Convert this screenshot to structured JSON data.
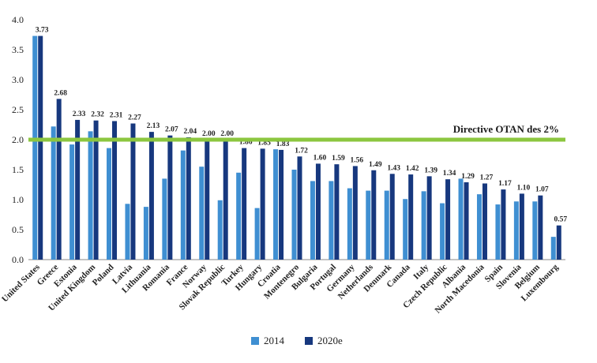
{
  "chart_data": {
    "type": "bar",
    "categories": [
      "United States",
      "Greece",
      "Estonia",
      "United Kingdom",
      "Poland",
      "Latvia",
      "Lithuania",
      "Romania",
      "France",
      "Norway",
      "Slovak Republic",
      "Turkey",
      "Hungary",
      "Croatia",
      "Montenegro",
      "Bulgaria",
      "Portugal",
      "Germany",
      "Netherlands",
      "Denmark",
      "Canada",
      "Italy",
      "Czech Republic",
      "Albania",
      "North Macedonia",
      "Spain",
      "Slovenia",
      "Belgium",
      "Luxembourg"
    ],
    "series": [
      {
        "name": "2014",
        "color": "#3f8fd2",
        "values": [
          3.73,
          2.22,
          1.92,
          2.14,
          1.86,
          0.93,
          0.88,
          1.35,
          1.82,
          1.55,
          0.99,
          1.45,
          0.86,
          1.84,
          1.5,
          1.31,
          1.31,
          1.19,
          1.15,
          1.15,
          1.01,
          1.14,
          0.94,
          1.35,
          1.09,
          0.92,
          0.97,
          0.97,
          0.38
        ]
      },
      {
        "name": "2020e",
        "color": "#17387e",
        "values": [
          3.73,
          2.68,
          2.33,
          2.32,
          2.31,
          2.27,
          2.13,
          2.07,
          2.04,
          2.0,
          2.0,
          1.86,
          1.85,
          1.83,
          1.72,
          1.6,
          1.59,
          1.56,
          1.49,
          1.43,
          1.42,
          1.39,
          1.34,
          1.29,
          1.27,
          1.17,
          1.1,
          1.07,
          0.57
        ],
        "labels": [
          "3.73",
          "2.68",
          "2.33",
          "2.32",
          "2.31",
          "2.27",
          "2.13",
          "2.07",
          "2.04",
          "2.00",
          "2.00",
          "1.86",
          "1.85",
          "1.83",
          "1.72",
          "1.60",
          "1.59",
          "1.56",
          "1.49",
          "1.43",
          "1.42",
          "1.39",
          "1.34",
          "1.29",
          "1.27",
          "1.17",
          "1.10",
          "1.07",
          "0.57"
        ]
      }
    ],
    "ylim": [
      0,
      4.0
    ],
    "yticks": [
      "0.0",
      "0.5",
      "1.0",
      "1.5",
      "2.0",
      "2.5",
      "3.0",
      "3.5",
      "4.0"
    ],
    "reference_line": {
      "value": 2.0,
      "label": "Directive OTAN des 2%",
      "color": "#8cc63f"
    },
    "grid": false,
    "legend_position": "bottom"
  }
}
